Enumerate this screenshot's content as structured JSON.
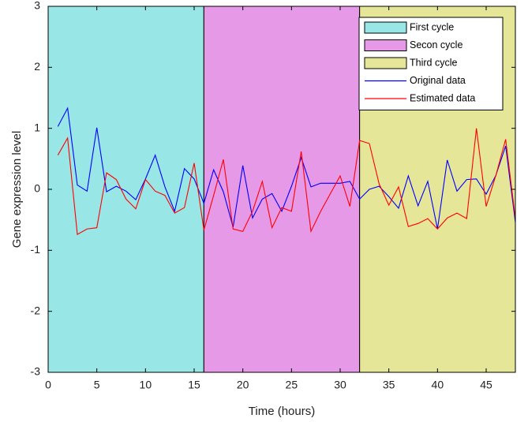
{
  "chart_data": {
    "type": "line",
    "xlabel": "Time (hours)",
    "ylabel": "Gene expression level",
    "xlim": [
      0,
      48
    ],
    "xticks": [
      0,
      5,
      10,
      15,
      20,
      25,
      30,
      35,
      40,
      45
    ],
    "ylim": [
      -3,
      3
    ],
    "yticks": [
      -3,
      -2,
      -1,
      0,
      1,
      2,
      3
    ],
    "legend": "upper right",
    "regions": [
      {
        "name": "First cycle",
        "color": "#99e6e6",
        "x": [
          0,
          16
        ]
      },
      {
        "name": "Secon cycle",
        "color": "#e699e6",
        "x": [
          16,
          32
        ]
      },
      {
        "name": "Third cycle",
        "color": "#e6e699",
        "x": [
          32,
          48
        ]
      }
    ],
    "x": [
      1,
      2,
      3,
      4,
      5,
      6,
      7,
      8,
      9,
      10,
      11,
      12,
      13,
      14,
      15,
      16,
      17,
      18,
      19,
      20,
      21,
      22,
      23,
      24,
      25,
      26,
      27,
      28,
      29,
      30,
      31,
      32,
      33,
      34,
      35,
      36,
      37,
      38,
      39,
      40,
      41,
      42,
      43,
      44,
      45,
      46,
      47,
      48
    ],
    "series": [
      {
        "name": "Original data",
        "color": "#0000ff",
        "values": [
          1.03,
          1.33,
          0.07,
          -0.03,
          1.01,
          -0.04,
          0.05,
          -0.03,
          -0.17,
          0.17,
          0.56,
          0.04,
          -0.36,
          0.34,
          0.17,
          -0.23,
          0.32,
          -0.04,
          -0.62,
          0.39,
          -0.47,
          -0.16,
          -0.07,
          -0.36,
          0.05,
          0.52,
          0.04,
          0.1,
          0.1,
          0.1,
          0.13,
          -0.16,
          0.0,
          0.05,
          -0.12,
          -0.31,
          0.22,
          -0.27,
          0.13,
          -0.65,
          0.48,
          -0.03,
          0.16,
          0.17,
          -0.08,
          0.23,
          0.71,
          -0.54
        ]
      },
      {
        "name": "Estimated data",
        "color": "#ff0000",
        "values": [
          0.56,
          0.84,
          -0.74,
          -0.65,
          -0.63,
          0.27,
          0.16,
          -0.16,
          -0.32,
          0.16,
          -0.03,
          -0.1,
          -0.39,
          -0.3,
          0.43,
          -0.67,
          -0.1,
          0.49,
          -0.65,
          -0.69,
          -0.36,
          0.13,
          -0.63,
          -0.3,
          -0.36,
          0.62,
          -0.69,
          -0.36,
          -0.07,
          0.22,
          -0.28,
          0.8,
          0.75,
          0.09,
          -0.26,
          0.04,
          -0.61,
          -0.56,
          -0.48,
          -0.65,
          -0.47,
          -0.39,
          -0.48,
          1.0,
          -0.28,
          0.23,
          0.82,
          -0.48
        ]
      }
    ]
  }
}
